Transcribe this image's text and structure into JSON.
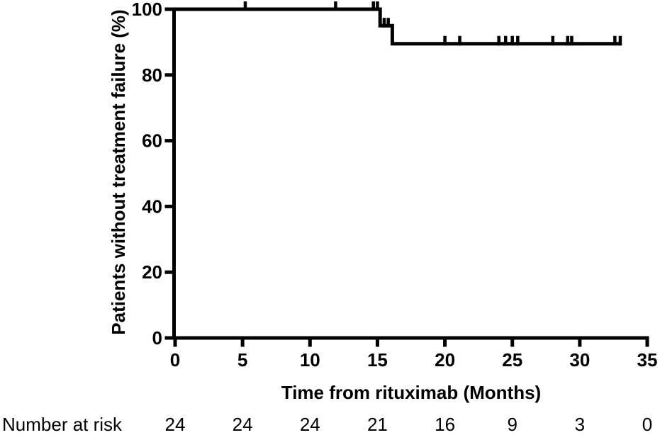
{
  "chart_data": {
    "type": "line",
    "subtype": "kaplan-meier-step-curve",
    "title": "",
    "xlabel": "Time from rituximab (Months)",
    "ylabel": "Patients without treatment failure (%)",
    "xlim": [
      0,
      35
    ],
    "ylim": [
      0,
      100
    ],
    "xticks": [
      0,
      5,
      10,
      15,
      20,
      25,
      30,
      35
    ],
    "yticks": [
      0,
      20,
      40,
      60,
      80,
      100
    ],
    "grid": false,
    "legend": "none",
    "series": [
      {
        "name": "Patients without treatment failure",
        "color": "#000000",
        "step_points": [
          {
            "t": 0,
            "pct": 100
          },
          {
            "t": 15.2,
            "pct": 100
          },
          {
            "t": 15.2,
            "pct": 95
          },
          {
            "t": 16.1,
            "pct": 95
          },
          {
            "t": 16.1,
            "pct": 89.5
          },
          {
            "t": 33.1,
            "pct": 89.5
          }
        ],
        "censor_marks": [
          {
            "t": 5.2,
            "pct": 100
          },
          {
            "t": 11.9,
            "pct": 100
          },
          {
            "t": 14.7,
            "pct": 100
          },
          {
            "t": 15.0,
            "pct": 100
          },
          {
            "t": 15.5,
            "pct": 95
          },
          {
            "t": 15.8,
            "pct": 95
          },
          {
            "t": 20.0,
            "pct": 89.5
          },
          {
            "t": 21.1,
            "pct": 89.5
          },
          {
            "t": 24.0,
            "pct": 89.5
          },
          {
            "t": 24.5,
            "pct": 89.5
          },
          {
            "t": 25.0,
            "pct": 89.5
          },
          {
            "t": 25.4,
            "pct": 89.5
          },
          {
            "t": 28.0,
            "pct": 89.5
          },
          {
            "t": 29.1,
            "pct": 89.5
          },
          {
            "t": 29.4,
            "pct": 89.5
          },
          {
            "t": 32.6,
            "pct": 89.5
          },
          {
            "t": 33.0,
            "pct": 89.5
          }
        ]
      }
    ],
    "number_at_risk": {
      "label": "Number at risk",
      "times": [
        0,
        5,
        10,
        15,
        20,
        25,
        30,
        35
      ],
      "values": [
        24,
        24,
        24,
        21,
        16,
        9,
        3,
        0
      ]
    },
    "colors": {
      "line": "#000000",
      "text": "#000000",
      "background": "#ffffff"
    }
  }
}
